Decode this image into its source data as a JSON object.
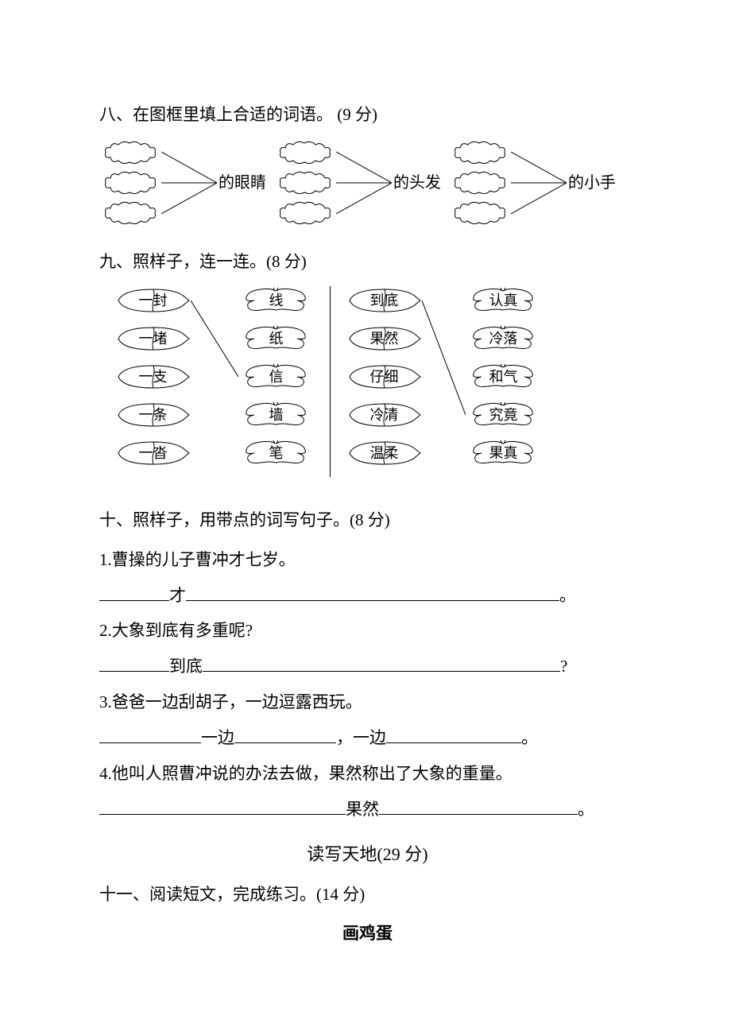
{
  "section8": {
    "heading": "八、在图框里填上合适的词语。 (9 分)",
    "groups": [
      {
        "label": "的眼睛"
      },
      {
        "label": "的头发"
      },
      {
        "label": "的小手"
      }
    ]
  },
  "section9": {
    "heading": "九、照样子，连一连。(8 分)",
    "left_a": [
      "一封",
      "一堵",
      "一支",
      "一条",
      "一沓"
    ],
    "left_b": [
      "线",
      "纸",
      "信",
      "墙",
      "笔"
    ],
    "right_a": [
      "到底",
      "果然",
      "仔细",
      "冷清",
      "温柔"
    ],
    "right_b": [
      "认真",
      "冷落",
      "和气",
      "究竟",
      "果真"
    ],
    "example_lines_left": [
      [
        0,
        2
      ]
    ],
    "example_lines_right": [
      [
        0,
        3
      ]
    ]
  },
  "section10": {
    "heading": "十、照样子，用带点的词写句子。(8 分)",
    "items": [
      {
        "num": "1.",
        "example": "曹操的儿子曹冲才七岁。",
        "blank_before": 88,
        "keyword": "才",
        "blank_after": 470,
        "end": "。"
      },
      {
        "num": "2.",
        "example": "大象到底有多重呢?",
        "blank_before": 88,
        "keyword": "到底",
        "blank_after": 450,
        "end": "?"
      },
      {
        "num": "3.",
        "example": "爸爸一边刮胡子，一边逗露西玩。",
        "segments": [
          {
            "blank": 128
          },
          {
            "text": "一边"
          },
          {
            "blank": 128
          },
          {
            "text": "，一边"
          },
          {
            "blank": 170
          },
          {
            "text": "。"
          }
        ]
      },
      {
        "num": "4.",
        "example": "他叫人照曹冲说的办法去做，果然称出了大象的重量。",
        "blank_before": 310,
        "keyword": "果然",
        "blank_after": 250,
        "end": "。"
      }
    ]
  },
  "reading": {
    "heading": "读写天地(29 分)",
    "section11_heading": "十一、阅读短文，完成练习。(14 分)",
    "passage_title": "画鸡蛋"
  },
  "colors": {
    "text": "#000000",
    "background": "#ffffff",
    "stroke": "#000000"
  }
}
